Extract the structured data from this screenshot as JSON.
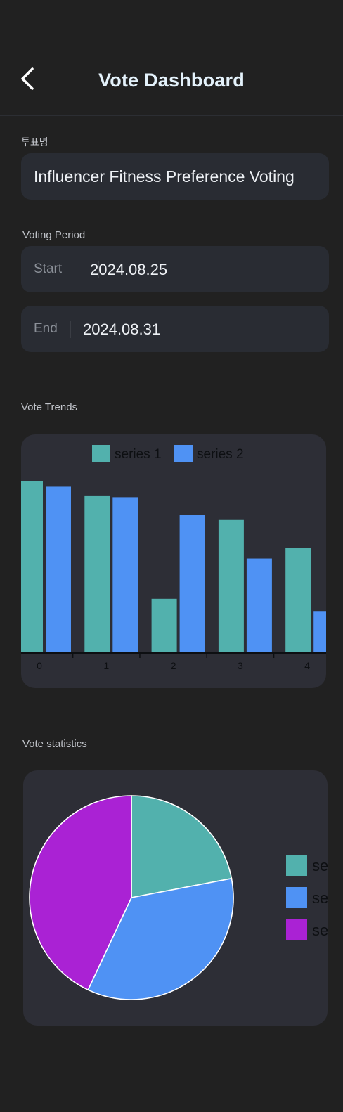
{
  "header": {
    "title": "Vote Dashboard",
    "back_icon": "chevron-left-icon"
  },
  "vote_name": {
    "label": "투표명",
    "value": "Influencer Fitness Preference Voting"
  },
  "voting_period": {
    "label": "Voting Period",
    "start_label": "Start",
    "start_value": "2024.08.25",
    "end_label": "End",
    "end_value": "2024.08.31"
  },
  "trends": {
    "label": "Vote Trends"
  },
  "statistics": {
    "label": "Vote statistics"
  },
  "colors": {
    "series1": "#52b1ad",
    "series2": "#4f92f4",
    "series3": "#aa22d4",
    "card": "#2d2e36"
  },
  "chart_data": [
    {
      "type": "bar",
      "categories": [
        "0",
        "1",
        "2",
        "3",
        "4"
      ],
      "series": [
        {
          "name": "series 1",
          "values": [
            0.98,
            0.9,
            0.31,
            0.76,
            0.6
          ]
        },
        {
          "name": "series 2",
          "values": [
            0.95,
            0.89,
            0.79,
            0.54,
            0.24
          ]
        }
      ],
      "legend": "top-center"
    },
    {
      "type": "pie",
      "labels": [
        "se",
        "se",
        "se"
      ],
      "values": [
        0.22,
        0.35,
        0.43
      ],
      "legend": "right"
    }
  ]
}
